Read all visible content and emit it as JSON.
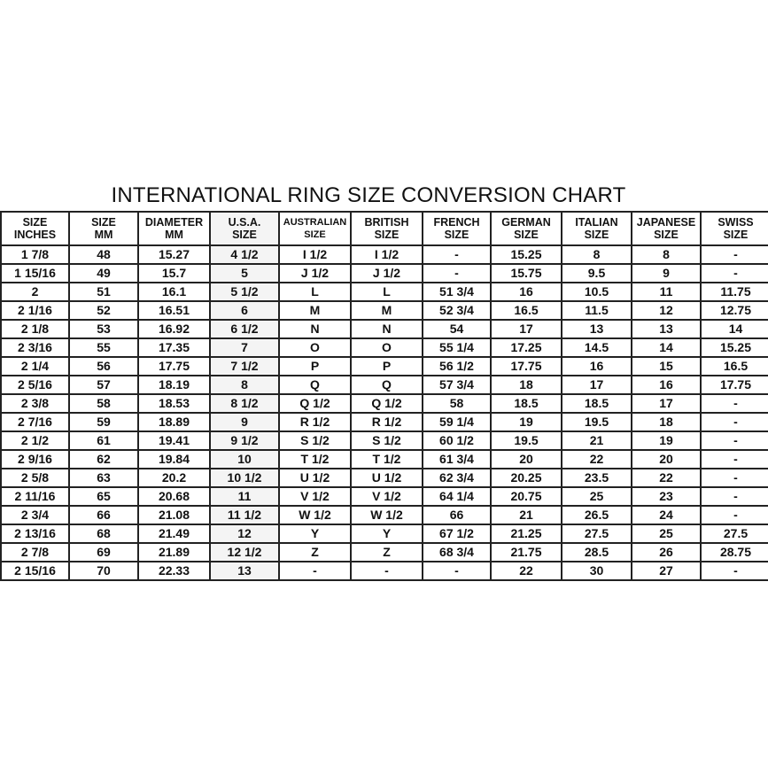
{
  "chart_data": {
    "type": "table",
    "title": "INTERNATIONAL RING SIZE CONVERSION CHART",
    "columns": [
      [
        "SIZE",
        "INCHES"
      ],
      [
        "SIZE",
        "MM"
      ],
      [
        "DIAMETER",
        "MM"
      ],
      [
        "U.S.A.",
        "SIZE"
      ],
      [
        "AUSTRALIAN",
        "SIZE"
      ],
      [
        "BRITISH",
        "SIZE"
      ],
      [
        "FRENCH",
        "SIZE"
      ],
      [
        "GERMAN",
        "SIZE"
      ],
      [
        "ITALIAN",
        "SIZE"
      ],
      [
        "JAPANESE",
        "SIZE"
      ],
      [
        "SWISS",
        "SIZE"
      ]
    ],
    "rows": [
      [
        "1 7/8",
        "48",
        "15.27",
        "4 1/2",
        "I 1/2",
        "I 1/2",
        "-",
        "15.25",
        "8",
        "8",
        "-"
      ],
      [
        "1 15/16",
        "49",
        "15.7",
        "5",
        "J 1/2",
        "J 1/2",
        "-",
        "15.75",
        "9.5",
        "9",
        "-"
      ],
      [
        "2",
        "51",
        "16.1",
        "5 1/2",
        "L",
        "L",
        "51 3/4",
        "16",
        "10.5",
        "11",
        "11.75"
      ],
      [
        "2 1/16",
        "52",
        "16.51",
        "6",
        "M",
        "M",
        "52 3/4",
        "16.5",
        "11.5",
        "12",
        "12.75"
      ],
      [
        "2 1/8",
        "53",
        "16.92",
        "6 1/2",
        "N",
        "N",
        "54",
        "17",
        "13",
        "13",
        "14"
      ],
      [
        "2 3/16",
        "55",
        "17.35",
        "7",
        "O",
        "O",
        "55 1/4",
        "17.25",
        "14.5",
        "14",
        "15.25"
      ],
      [
        "2 1/4",
        "56",
        "17.75",
        "7 1/2",
        "P",
        "P",
        "56 1/2",
        "17.75",
        "16",
        "15",
        "16.5"
      ],
      [
        "2 5/16",
        "57",
        "18.19",
        "8",
        "Q",
        "Q",
        "57 3/4",
        "18",
        "17",
        "16",
        "17.75"
      ],
      [
        "2 3/8",
        "58",
        "18.53",
        "8 1/2",
        "Q 1/2",
        "Q 1/2",
        "58",
        "18.5",
        "18.5",
        "17",
        "-"
      ],
      [
        "2 7/16",
        "59",
        "18.89",
        "9",
        "R 1/2",
        "R 1/2",
        "59 1/4",
        "19",
        "19.5",
        "18",
        "-"
      ],
      [
        "2 1/2",
        "61",
        "19.41",
        "9 1/2",
        "S 1/2",
        "S 1/2",
        "60 1/2",
        "19.5",
        "21",
        "19",
        "-"
      ],
      [
        "2 9/16",
        "62",
        "19.84",
        "10",
        "T 1/2",
        "T 1/2",
        "61 3/4",
        "20",
        "22",
        "20",
        "-"
      ],
      [
        "2 5/8",
        "63",
        "20.2",
        "10 1/2",
        "U 1/2",
        "U 1/2",
        "62 3/4",
        "20.25",
        "23.5",
        "22",
        "-"
      ],
      [
        "2 11/16",
        "65",
        "20.68",
        "11",
        "V 1/2",
        "V 1/2",
        "64 1/4",
        "20.75",
        "25",
        "23",
        "-"
      ],
      [
        "2 3/4",
        "66",
        "21.08",
        "11 1/2",
        "W 1/2",
        "W 1/2",
        "66",
        "21",
        "26.5",
        "24",
        "-"
      ],
      [
        "2 13/16",
        "68",
        "21.49",
        "12",
        "Y",
        "Y",
        "67 1/2",
        "21.25",
        "27.5",
        "25",
        "27.5"
      ],
      [
        "2 7/8",
        "69",
        "21.89",
        "12 1/2",
        "Z",
        "Z",
        "68 3/4",
        "21.75",
        "28.5",
        "26",
        "28.75"
      ],
      [
        "2 15/16",
        "70",
        "22.33",
        "13",
        "-",
        "-",
        "-",
        "22",
        "30",
        "27",
        "-"
      ]
    ],
    "highlight_column_color": "#f4f4f4"
  }
}
